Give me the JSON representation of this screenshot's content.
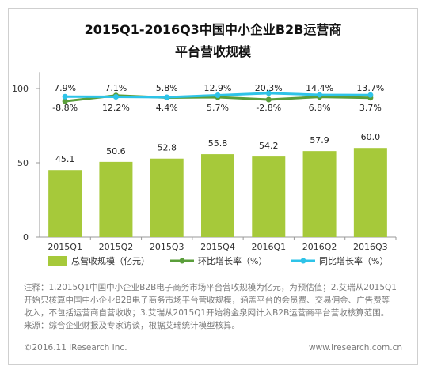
{
  "header": {
    "title_line1": "2015Q1-2016Q3中国中小企业B2B运营商",
    "title_line2": "平台营收规模"
  },
  "chart_data": {
    "type": "bar",
    "categories": [
      "2015Q1",
      "2015Q2",
      "2015Q3",
      "2015Q4",
      "2016Q1",
      "2016Q2",
      "2016Q3"
    ],
    "bar_series": {
      "name": "总营收规模（亿元）",
      "values": [
        45.1,
        50.6,
        52.8,
        55.8,
        54.2,
        57.9,
        60.0
      ],
      "labels": [
        "45.1",
        "50.6",
        "52.8",
        "55.8",
        "54.2",
        "57.9",
        "60.0"
      ],
      "color": "#a6c93a"
    },
    "line_series": [
      {
        "name": "环比增长率（%）",
        "values": [
          -8.8,
          12.2,
          4.4,
          5.7,
          -2.8,
          6.8,
          3.7
        ],
        "labels": [
          "-8.8%",
          "12.2%",
          "4.4%",
          "5.7%",
          "-2.8%",
          "6.8%",
          "3.7%"
        ],
        "color": "#5a9e3a"
      },
      {
        "name": "同比增长率（%）",
        "values": [
          7.9,
          7.1,
          5.8,
          12.9,
          20.3,
          14.4,
          13.7
        ],
        "labels": [
          "7.9%",
          "7.1%",
          "5.8%",
          "12.9%",
          "20.3%",
          "14.4%",
          "13.7%"
        ],
        "color": "#2ec3e8"
      }
    ],
    "y_ticks": [
      "0",
      "50",
      "100"
    ],
    "y_tick_values": [
      0,
      50,
      100
    ],
    "ylim": [
      0,
      110
    ],
    "legend_position": "bottom"
  },
  "notes": {
    "line1": "注释：1.2015Q1中国中小企业B2B电子商务市场平台营收规模为亿元，为预估值；2.艾瑞从2015Q1",
    "line2": "开始只核算中国中小企业B2B电子商务市场平台营收规模，涵盖平台的会员费、交易佣金、广告费等",
    "line3": "收入，不包括运营商自营收收；3.艾瑞从2015Q1开始将金泉网计入B2B运营商平台营收核算范围。",
    "line4": "来源：综合企业财报及专家访谈，根据艾瑞统计模型核算。"
  },
  "footer": {
    "copyright": "©2016.11 iResearch Inc.",
    "website": "www.iresearch.com.cn"
  }
}
